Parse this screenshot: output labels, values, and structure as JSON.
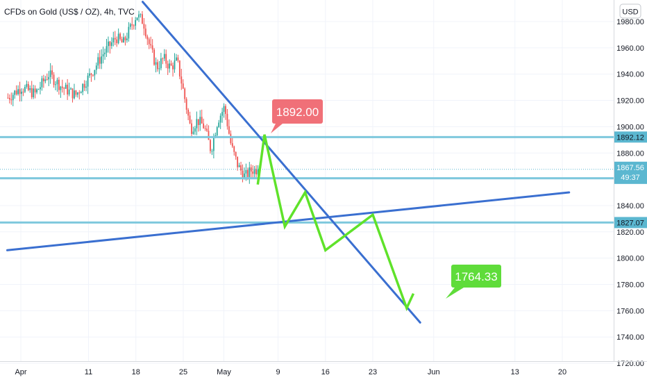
{
  "header": {
    "symbol_title": "CFDs on Gold (US$ / OZ), 4h, TVC"
  },
  "currency_button": "USD",
  "colors": {
    "up": "#26a69a",
    "down": "#ef5350",
    "trendline": "#3a6fd0",
    "level": "#7ec8dd",
    "path": "#5fe22a",
    "red_callout": "#f07078",
    "green_callout": "#5fdc3a",
    "last_price_badge": "#5bb7d0"
  },
  "chart_data": {
    "type": "candlestick",
    "title": "CFDs on Gold (US$ / OZ), 4h, TVC",
    "y_axis": {
      "range": [
        1713,
        1995
      ],
      "ticks": [
        1720,
        1740,
        1760,
        1780,
        1800,
        1820,
        1840,
        1860,
        1880,
        1900,
        1920,
        1940,
        1960,
        1980
      ],
      "tick_labels": [
        "1720.00",
        "1740.00",
        "1760.00",
        "1780.00",
        "1800.00",
        "1820.00",
        "1840.00",
        "1860.00",
        "1880.00",
        "1900.00",
        "1920.00",
        "1940.00",
        "1960.00",
        "1980.00"
      ]
    },
    "x_axis": {
      "ticks": [
        {
          "label": "Apr",
          "date": "2021-04-01"
        },
        {
          "label": "11",
          "date": "2021-04-11"
        },
        {
          "label": "18",
          "date": "2021-04-18"
        },
        {
          "label": "25",
          "date": "2021-04-25"
        },
        {
          "label": "May",
          "date": "2021-05-01"
        },
        {
          "label": "9",
          "date": "2021-05-09"
        },
        {
          "label": "16",
          "date": "2021-05-16"
        },
        {
          "label": "23",
          "date": "2021-05-23"
        },
        {
          "label": "Jun",
          "date": "2021-06-01"
        },
        {
          "label": "13",
          "date": "2021-06-13"
        },
        {
          "label": "20",
          "date": "2021-06-20"
        }
      ]
    },
    "price_close_path": [
      [
        "2021-03-30",
        1922
      ],
      [
        "2021-04-01",
        1930
      ],
      [
        "2021-04-03",
        1925
      ],
      [
        "2021-04-05",
        1940
      ],
      [
        "2021-04-07",
        1930
      ],
      [
        "2021-04-09",
        1924
      ],
      [
        "2021-04-11",
        1938
      ],
      [
        "2021-04-13",
        1955
      ],
      [
        "2021-04-15",
        1968
      ],
      [
        "2021-04-16",
        1963
      ],
      [
        "2021-04-18",
        1985
      ],
      [
        "2021-04-19",
        1980
      ],
      [
        "2021-04-20",
        1960
      ],
      [
        "2021-04-21",
        1945
      ],
      [
        "2021-04-22",
        1952
      ],
      [
        "2021-04-23",
        1945
      ],
      [
        "2021-04-24",
        1950
      ],
      [
        "2021-04-25",
        1925
      ],
      [
        "2021-04-26",
        1898
      ],
      [
        "2021-04-27",
        1905
      ],
      [
        "2021-04-28",
        1900
      ],
      [
        "2021-04-29",
        1882
      ],
      [
        "2021-04-30",
        1905
      ],
      [
        "2021-05-01",
        1915
      ],
      [
        "2021-05-02",
        1885
      ],
      [
        "2021-05-03",
        1870
      ],
      [
        "2021-05-04",
        1862
      ],
      [
        "2021-05-05",
        1867
      ],
      [
        "2021-05-06",
        1867.56
      ]
    ],
    "horizontal_levels": [
      {
        "value": 1892.12,
        "label": "1892.12"
      },
      {
        "value": 1860.8,
        "label": "1860.80"
      },
      {
        "value": 1827.07,
        "label": "1827.07"
      }
    ],
    "last_price": {
      "value": 1867.56,
      "label": "1867.56",
      "countdown": "49:37"
    },
    "trendlines": [
      {
        "name": "descending",
        "from": [
          "2021-04-19",
          1995
        ],
        "to": [
          "2021-05-30",
          1751
        ]
      },
      {
        "name": "ascending",
        "from": [
          "2021-03-30",
          1806
        ],
        "to": [
          "2021-06-21",
          1850
        ]
      }
    ],
    "projected_path": [
      [
        "2021-05-06",
        1856
      ],
      [
        "2021-05-07",
        1894
      ],
      [
        "2021-05-10",
        1824
      ],
      [
        "2021-05-13",
        1850
      ],
      [
        "2021-05-16",
        1806
      ],
      [
        "2021-05-23",
        1833
      ],
      [
        "2021-05-28",
        1762
      ],
      [
        "2021-05-29",
        1773
      ]
    ],
    "annotations": [
      {
        "text": "1892.00",
        "style": "red"
      },
      {
        "text": "1764.33",
        "style": "green"
      }
    ]
  }
}
